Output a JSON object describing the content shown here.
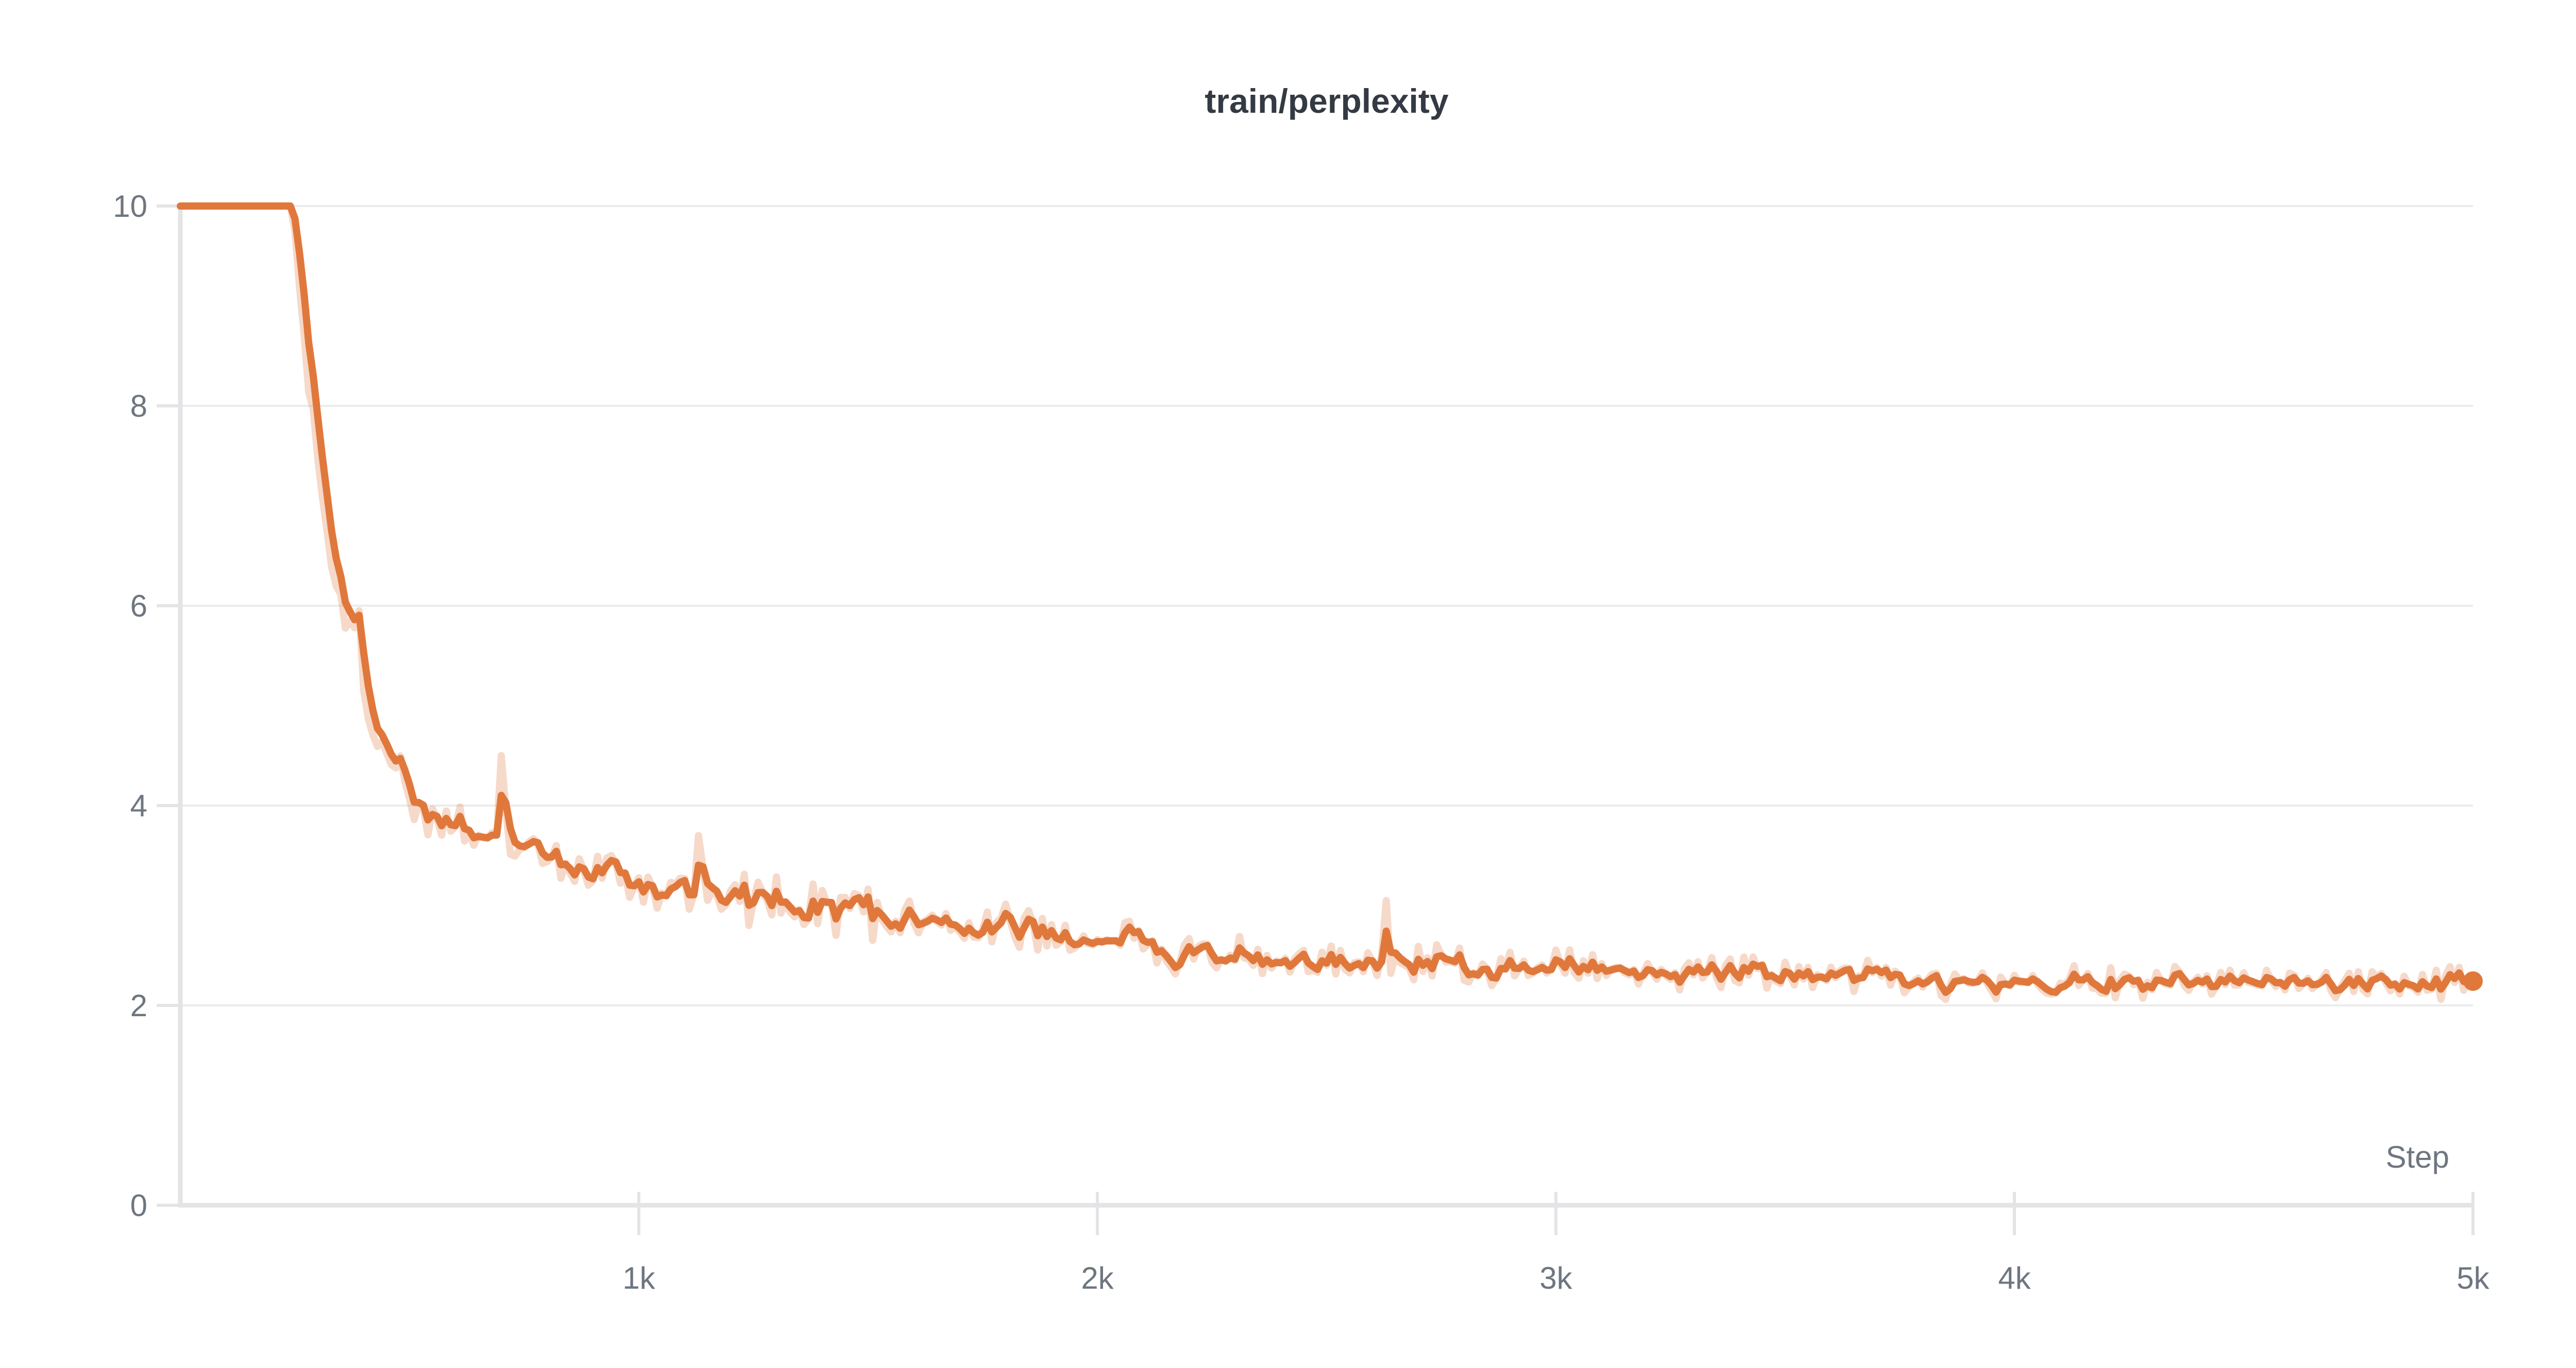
{
  "chart_data": {
    "type": "line",
    "title": "train/perplexity",
    "xlabel": "Step",
    "ylabel": "",
    "x_range": [
      0,
      5000
    ],
    "y_range": [
      0,
      10
    ],
    "grid": "horizontal",
    "legend": "none",
    "x_ticks": [
      {
        "value": 1000,
        "label": "1k"
      },
      {
        "value": 2000,
        "label": "2k"
      },
      {
        "value": 3000,
        "label": "3k"
      },
      {
        "value": 4000,
        "label": "4k"
      },
      {
        "value": 5000,
        "label": "5k"
      }
    ],
    "y_ticks": [
      {
        "value": 0,
        "label": "0"
      },
      {
        "value": 2,
        "label": "2"
      },
      {
        "value": 4,
        "label": "4"
      },
      {
        "value": 6,
        "label": "6"
      },
      {
        "value": 8,
        "label": "8"
      },
      {
        "value": 10,
        "label": "10"
      }
    ],
    "colors": {
      "line": "#E0783C",
      "line_raw": "rgba(224,120,60,0.28)",
      "grid": "#ececee",
      "axis": "#e4e4e7",
      "tick_label": "#6e7680",
      "title": "#343a43"
    },
    "series": [
      {
        "name": "train/perplexity",
        "clip_max": 10,
        "sample_interval": 10,
        "seed": 7,
        "smoothing_alpha": 0.5,
        "end_marker": true,
        "end_marker_radius": 19,
        "final_value": 2.2,
        "trend_points": [
          [
            0,
            10
          ],
          [
            244,
            10
          ],
          [
            250,
            9.75
          ],
          [
            256,
            9.45
          ],
          [
            262,
            9.05
          ],
          [
            268,
            8.7
          ],
          [
            276,
            8.35
          ],
          [
            286,
            8.05
          ],
          [
            294,
            7.75
          ],
          [
            303,
            7.4
          ],
          [
            313,
            7.05
          ],
          [
            328,
            6.55
          ],
          [
            343,
            6.2
          ],
          [
            357,
            5.95
          ],
          [
            376,
            5.6
          ],
          [
            398,
            5.12
          ],
          [
            428,
            4.68
          ],
          [
            468,
            4.35
          ],
          [
            508,
            4.12
          ],
          [
            556,
            3.97
          ],
          [
            623,
            3.77
          ],
          [
            740,
            3.56
          ],
          [
            878,
            3.42
          ],
          [
            978,
            3.28
          ],
          [
            1078,
            3.18
          ],
          [
            1180,
            3.08
          ],
          [
            1334,
            3.0
          ],
          [
            1470,
            2.94
          ],
          [
            1570,
            2.87
          ],
          [
            1730,
            2.8
          ],
          [
            1890,
            2.72
          ],
          [
            2085,
            2.61
          ],
          [
            2310,
            2.48
          ],
          [
            2630,
            2.43
          ],
          [
            2950,
            2.38
          ],
          [
            3250,
            2.34
          ],
          [
            3500,
            2.31
          ],
          [
            3750,
            2.28
          ],
          [
            4000,
            2.25
          ],
          [
            4250,
            2.24
          ],
          [
            4500,
            2.23
          ],
          [
            4750,
            2.22
          ],
          [
            5000,
            2.22
          ]
        ],
        "noise_profile": [
          [
            0,
            0
          ],
          [
            244,
            0
          ],
          [
            256,
            0.06
          ],
          [
            280,
            0.1
          ],
          [
            350,
            0.16
          ],
          [
            600,
            0.19
          ],
          [
            900,
            0.17
          ],
          [
            1300,
            0.15
          ],
          [
            2000,
            0.13
          ],
          [
            3000,
            0.11
          ],
          [
            4000,
            0.1
          ],
          [
            5000,
            0.1
          ]
        ],
        "raw_spikes": [
          [
            387,
            5.95
          ],
          [
            700,
            4.5
          ],
          [
            1128,
            3.7
          ],
          [
            1240,
            2.8
          ],
          [
            2630,
            3.05
          ],
          [
            3850,
            2.06
          ],
          [
            4930,
            2.06
          ]
        ]
      }
    ]
  }
}
